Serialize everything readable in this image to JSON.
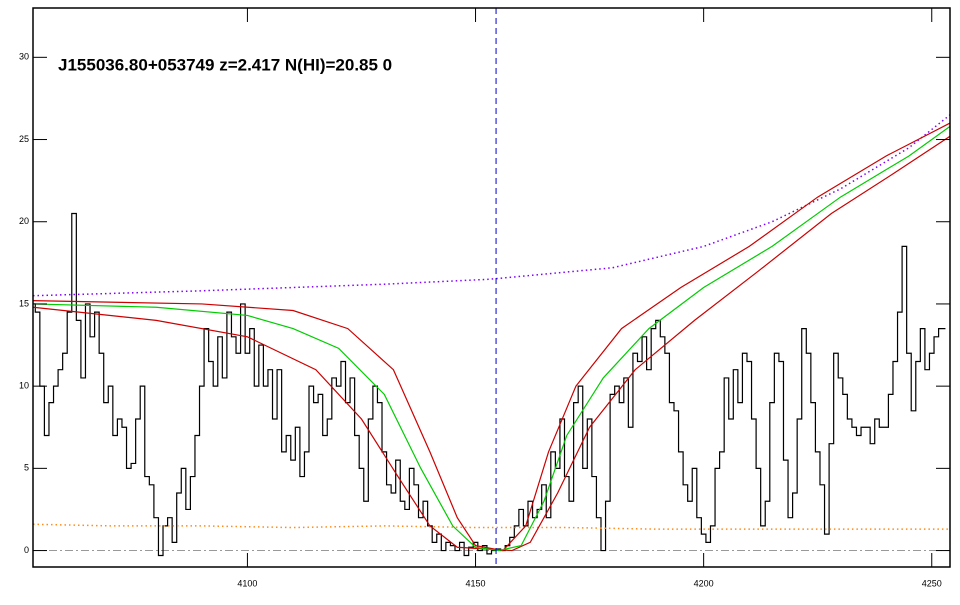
{
  "chart_data": {
    "type": "line",
    "title": "J155036.80+053749 z=2.417 N(HI)=20.85 0",
    "xlim": [
      4053,
      4254
    ],
    "ylim": [
      -1,
      33
    ],
    "xticks": [
      4100,
      4150,
      4200,
      4250
    ],
    "yticks": [
      0,
      5,
      10,
      15,
      20,
      25,
      30
    ],
    "series": [
      {
        "color": "#000000",
        "style": "steps",
        "x": [
          4053,
          4054,
          4055,
          4056,
          4057,
          4058,
          4059,
          4060,
          4061,
          4062,
          4063,
          4064,
          4065,
          4066,
          4067,
          4068,
          4069,
          4070,
          4071,
          4072,
          4073,
          4074,
          4075,
          4076,
          4077,
          4078,
          4079,
          4080,
          4081,
          4082,
          4083,
          4084,
          4085,
          4086,
          4087,
          4088,
          4089,
          4090,
          4091,
          4092,
          4093,
          4094,
          4095,
          4096,
          4097,
          4098,
          4099,
          4100,
          4101,
          4102,
          4103,
          4104,
          4105,
          4106,
          4107,
          4108,
          4109,
          4110,
          4111,
          4112,
          4113,
          4114,
          4115,
          4116,
          4117,
          4118,
          4119,
          4120,
          4121,
          4122,
          4123,
          4124,
          4125,
          4126,
          4127,
          4128,
          4129,
          4130,
          4131,
          4132,
          4133,
          4134,
          4135,
          4136,
          4137,
          4138,
          4139,
          4140,
          4141,
          4142,
          4143,
          4144,
          4145,
          4146,
          4147,
          4148,
          4149,
          4150,
          4151,
          4152,
          4153,
          4154,
          4155,
          4156,
          4157,
          4158,
          4159,
          4160,
          4161,
          4162,
          4163,
          4164,
          4165,
          4166,
          4167,
          4168,
          4169,
          4170,
          4171,
          4172,
          4173,
          4174,
          4175,
          4176,
          4177,
          4178,
          4179,
          4180,
          4181,
          4182,
          4183,
          4184,
          4185,
          4186,
          4187,
          4188,
          4189,
          4190,
          4191,
          4192,
          4193,
          4194,
          4195,
          4196,
          4197,
          4198,
          4199,
          4200,
          4201,
          4202,
          4203,
          4204,
          4205,
          4206,
          4207,
          4208,
          4209,
          4210,
          4211,
          4212,
          4213,
          4214,
          4215,
          4216,
          4217,
          4218,
          4219,
          4220,
          4221,
          4222,
          4223,
          4224,
          4225,
          4226,
          4227,
          4228,
          4229,
          4230,
          4231,
          4232,
          4233,
          4234,
          4235,
          4236,
          4237,
          4238,
          4239,
          4240,
          4241,
          4242,
          4243,
          4244,
          4245,
          4246,
          4247,
          4248,
          4249,
          4250,
          4251,
          4252,
          4253
        ],
        "values": [
          15,
          14.5,
          10,
          7,
          9,
          10,
          11,
          12,
          14.5,
          20.5,
          14,
          10.5,
          15,
          13,
          14.5,
          12,
          9,
          10,
          7,
          8,
          7.5,
          5,
          5.3,
          8,
          10,
          4.5,
          4,
          2,
          -0.3,
          1.5,
          2,
          0.5,
          3.5,
          5,
          2.5,
          4.5,
          7,
          10,
          13.5,
          11.5,
          10,
          13,
          10.5,
          14.5,
          13,
          12,
          15,
          12,
          13.5,
          10,
          12.5,
          10,
          11,
          8,
          11,
          6,
          7,
          5.5,
          7.5,
          4.5,
          6,
          10,
          9,
          9.5,
          7,
          8,
          10.5,
          10,
          11.5,
          9,
          10.5,
          7,
          5,
          3,
          8,
          10,
          9,
          6,
          4,
          3.5,
          5.5,
          3,
          2.5,
          5,
          4,
          2,
          3,
          1.5,
          0.5,
          1,
          0,
          0.5,
          0.3,
          0,
          0.5,
          -0.3,
          0.2,
          0.5,
          0,
          0.3,
          -0.2,
          0,
          0.1,
          0,
          0.3,
          0.8,
          1.5,
          2.5,
          1.5,
          3,
          2,
          2.5,
          4,
          2,
          6,
          5,
          8,
          4.5,
          3,
          9,
          10,
          5,
          8,
          4.5,
          2,
          0,
          3,
          9.5,
          10,
          9,
          10.5,
          7.5,
          12,
          11.5,
          13,
          11,
          13.5,
          14,
          13,
          12,
          9,
          8.5,
          6,
          4,
          3,
          5,
          2,
          1,
          0.5,
          1.5,
          5,
          6,
          10.5,
          8,
          11,
          9,
          12,
          11.5,
          8,
          5,
          1.5,
          3,
          9,
          12,
          11.5,
          5.5,
          2,
          3.5,
          8,
          13.5,
          12,
          9,
          6,
          4,
          1,
          6.5,
          12,
          10.5,
          9.5,
          8,
          7.5,
          7,
          7.5,
          7.5,
          6.5,
          8,
          7.5,
          7.5,
          9.5,
          11.5,
          14.5,
          18.5,
          12,
          8.5,
          11.5,
          13.5,
          11,
          12,
          13,
          13.5,
          13.5
        ]
      },
      {
        "color": "#ff8c1a",
        "style": "dotted",
        "x": [
          4053,
          4070,
          4090,
          4110,
          4130,
          4150,
          4170,
          4190,
          4210,
          4230,
          4254
        ],
        "values": [
          1.6,
          1.5,
          1.5,
          1.4,
          1.5,
          1.4,
          1.4,
          1.3,
          1.3,
          1.3,
          1.3
        ]
      },
      {
        "color": "#8000ff",
        "style": "dotted",
        "x": [
          4053,
          4090,
          4130,
          4153,
          4180,
          4200,
          4215,
          4230,
          4245,
          4254
        ],
        "values": [
          15.5,
          15.8,
          16.2,
          16.5,
          17.2,
          18.5,
          20,
          22,
          24.5,
          26.5
        ]
      },
      {
        "color": "#cc0000",
        "style": "solid",
        "x": [
          4053,
          4090,
          4110,
          4122,
          4132,
          4140,
          4146,
          4150,
          4156,
          4161,
          4166,
          4172,
          4182,
          4195,
          4210,
          4225,
          4240,
          4254
        ],
        "values": [
          15.2,
          15,
          14.6,
          13.5,
          11,
          6,
          2,
          0.3,
          0,
          1.5,
          6,
          10,
          13.5,
          16,
          18.5,
          21.5,
          24,
          26
        ]
      },
      {
        "color": "#cc0000",
        "style": "solid",
        "x": [
          4053,
          4080,
          4100,
          4115,
          4125,
          4133,
          4140,
          4146,
          4158,
          4162,
          4168,
          4175,
          4185,
          4198,
          4212,
          4228,
          4242,
          4254
        ],
        "values": [
          14.8,
          14,
          13,
          11,
          8,
          4.5,
          1.5,
          0.2,
          0,
          0.5,
          3.5,
          7.5,
          11,
          14,
          17,
          20.5,
          23,
          25.2
        ]
      },
      {
        "color": "#00cc00",
        "style": "solid",
        "x": [
          4053,
          4080,
          4100,
          4110,
          4120,
          4130,
          4138,
          4145,
          4150,
          4155,
          4160,
          4165,
          4170,
          4178,
          4188,
          4200,
          4215,
          4230,
          4245,
          4254
        ],
        "values": [
          15,
          14.8,
          14.3,
          13.5,
          12.3,
          9.5,
          5,
          1.5,
          0.2,
          0,
          0.3,
          3,
          7,
          10.5,
          13.5,
          16,
          18.5,
          21.5,
          24,
          25.8
        ]
      }
    ],
    "vlines": [
      {
        "value": 4154.5,
        "color": "#0000cc",
        "style": "dashed"
      }
    ],
    "hlines": [
      {
        "value": 0,
        "color": "#999999",
        "style": "dashdot"
      }
    ]
  }
}
